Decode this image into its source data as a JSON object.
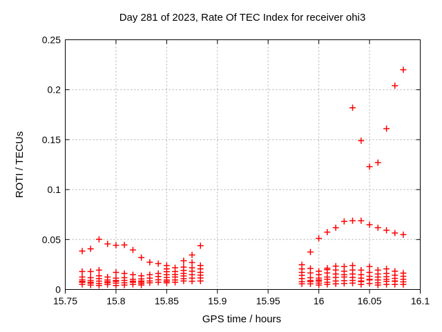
{
  "chart_data": {
    "type": "scatter",
    "title": "Day 281 of 2023, Rate Of TEC Index for receiver ohi3",
    "xlabel": "GPS time / hours",
    "ylabel": "ROTI / TECUs",
    "xlim": [
      15.75,
      16.1
    ],
    "ylim": [
      0,
      0.25
    ],
    "xticks": [
      15.75,
      15.8,
      15.85,
      15.9,
      15.95,
      16,
      16.05,
      16.1
    ],
    "xtick_labels": [
      "15.75",
      "15.8",
      "15.85",
      "15.9",
      "15.95",
      "16",
      "16.05",
      "16.1"
    ],
    "yticks": [
      0,
      0.05,
      0.1,
      0.15,
      0.2,
      0.25
    ],
    "ytick_labels": [
      "0",
      "0.05",
      "0.1",
      "0.15",
      "0.2",
      "0.25"
    ],
    "grid": true,
    "legend": "none",
    "marker": "plus",
    "colors": {
      "marker": "#ff0000",
      "grid": "#aaaaaa",
      "axis": "#000000",
      "text": "#000000",
      "background": "#ffffff"
    },
    "series": [
      {
        "name": "ROTI",
        "columns": [
          {
            "x": 15.7667,
            "ys": [
              0.0384,
              0.018,
              0.0125,
              0.0097,
              0.0081,
              0.0072,
              0.0051
            ]
          },
          {
            "x": 15.775,
            "ys": [
              0.0407,
              0.018,
              0.0118,
              0.009,
              0.0072,
              0.0063,
              0.0044
            ]
          },
          {
            "x": 15.7833,
            "ys": [
              0.0502,
              0.0194,
              0.0137,
              0.0109,
              0.0083,
              0.006,
              0.004
            ]
          },
          {
            "x": 15.7917,
            "ys": [
              0.0456,
              0.0125,
              0.0095,
              0.0078,
              0.0067,
              0.0049
            ]
          },
          {
            "x": 15.8,
            "ys": [
              0.0442,
              0.0171,
              0.0113,
              0.009,
              0.0081,
              0.0063,
              0.004
            ]
          },
          {
            "x": 15.8083,
            "ys": [
              0.0446,
              0.016,
              0.0118,
              0.009,
              0.0067,
              0.0044
            ]
          },
          {
            "x": 15.8167,
            "ys": [
              0.0396,
              0.0148,
              0.0102,
              0.0083,
              0.0072,
              0.0051
            ]
          },
          {
            "x": 15.825,
            "ys": [
              0.0319,
              0.0137,
              0.0106,
              0.0085,
              0.0074,
              0.006,
              0.0044
            ]
          },
          {
            "x": 15.8333,
            "ys": [
              0.0273,
              0.0148,
              0.0113,
              0.0085,
              0.0067
            ]
          },
          {
            "x": 15.8417,
            "ys": [
              0.0259,
              0.016,
              0.013,
              0.0097,
              0.0072
            ]
          },
          {
            "x": 15.85,
            "ys": [
              0.024,
              0.0206,
              0.0178,
              0.0148,
              0.012,
              0.0095,
              0.0081,
              0.0067
            ]
          },
          {
            "x": 15.8583,
            "ys": [
              0.0217,
              0.018,
              0.015,
              0.0125,
              0.0095,
              0.0072
            ]
          },
          {
            "x": 15.8667,
            "ys": [
              0.0287,
              0.0224,
              0.019,
              0.016,
              0.0135,
              0.0108,
              0.0085
            ]
          },
          {
            "x": 15.875,
            "ys": [
              0.0345,
              0.027,
              0.0217,
              0.0183,
              0.0148,
              0.0113,
              0.0082
            ]
          },
          {
            "x": 15.8833,
            "ys": [
              0.0438,
              0.0241,
              0.0206,
              0.0171,
              0.0144,
              0.0115,
              0.0085
            ]
          },
          {
            "x": 15.9833,
            "ys": [
              0.0248,
              0.0206,
              0.0171,
              0.0141,
              0.0109,
              0.0078,
              0.0056
            ]
          },
          {
            "x": 15.9917,
            "ys": [
              0.0375,
              0.021,
              0.0165,
              0.0118,
              0.009,
              0.0078,
              0.0056
            ]
          },
          {
            "x": 16.0,
            "ys": [
              0.0512,
              0.0183,
              0.0148,
              0.0113,
              0.0095,
              0.0083,
              0.0063,
              0.0044
            ]
          },
          {
            "x": 16.0083,
            "ys": [
              0.0574,
              0.0213,
              0.0199,
              0.0165,
              0.0125,
              0.0102,
              0.0072,
              0.0051
            ]
          },
          {
            "x": 16.0167,
            "ys": [
              0.0618,
              0.0234,
              0.0195,
              0.0155,
              0.012,
              0.0085,
              0.0056
            ]
          },
          {
            "x": 16.025,
            "ys": [
              0.0681,
              0.0229,
              0.0183,
              0.0148,
              0.0125,
              0.0088,
              0.006
            ]
          },
          {
            "x": 16.0333,
            "ys": [
              0.182,
              0.0688,
              0.024,
              0.0195,
              0.0155,
              0.012,
              0.009,
              0.0063
            ]
          },
          {
            "x": 16.0417,
            "ys": [
              0.149,
              0.0688,
              0.0194,
              0.0148,
              0.0113,
              0.0085,
              0.0078,
              0.005
            ]
          },
          {
            "x": 16.05,
            "ys": [
              0.123,
              0.0648,
              0.0229,
              0.0171,
              0.0132,
              0.0102,
              0.0095,
              0.006
            ]
          },
          {
            "x": 16.0583,
            "ys": [
              0.127,
              0.0618,
              0.0194,
              0.0155,
              0.0125,
              0.0095,
              0.0067,
              0.0044
            ]
          },
          {
            "x": 16.0667,
            "ys": [
              0.161,
              0.0593,
              0.0206,
              0.016,
              0.0128,
              0.0102,
              0.0081,
              0.005
            ]
          },
          {
            "x": 16.075,
            "ys": [
              0.204,
              0.0565,
              0.0183,
              0.0143,
              0.0111,
              0.0085,
              0.0081,
              0.005
            ]
          },
          {
            "x": 16.0833,
            "ys": [
              0.22,
              0.0549,
              0.0164,
              0.0132,
              0.0102,
              0.0076,
              0.005
            ]
          }
        ]
      }
    ]
  }
}
